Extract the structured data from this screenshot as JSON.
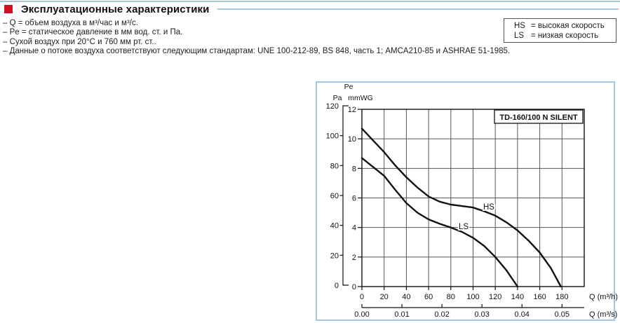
{
  "page": {
    "header": {
      "title": "Эксплуатационные характеристики"
    },
    "notes": [
      "– Q = объем воздуха в м³/час и м³/с.",
      "– Pe = статическое давление в мм вод. ст. и Па.",
      "– Сухой воздух при 20°C и 760 мм рт. ст..",
      "– Данные о потоке воздуха соответствуют следующим стандартам: UNE 100-212-89, BS 848, часть 1; AMCA210-85 и ASHRAE 51-1985."
    ],
    "legend_box": {
      "lines": [
        {
          "code": "HS",
          "desc": "= высокая скорость"
        },
        {
          "code": "LS",
          "desc": "= низкая скорость"
        }
      ]
    }
  },
  "colors": {
    "accent_red": "#d21020",
    "panel_blue": "#a7c6db",
    "ink": "#111111",
    "grid_gray": "#555555"
  },
  "chart_data": {
    "type": "line",
    "title": "TD-160/100 N SILENT",
    "pressure_symbol": "Pe",
    "y_units": {
      "left": "Pa",
      "right": "mmWG"
    },
    "x_axis_primary": {
      "label": "Q (m³/h)",
      "ticks": [
        0,
        20,
        40,
        60,
        80,
        100,
        120,
        140,
        160,
        180
      ],
      "max": 200
    },
    "x_axis_secondary": {
      "label": "Q (m³/s)",
      "ticks": [
        "0.00",
        "0.01",
        "0.02",
        "0.03",
        "0.04",
        "0.05"
      ],
      "m3h_per_unit": 3600
    },
    "y_axis_pa": {
      "ticks": [
        0,
        20,
        40,
        60,
        80,
        100,
        120
      ],
      "max": 120
    },
    "y_axis_mmwg": {
      "ticks": [
        0,
        2,
        4,
        6,
        8,
        10,
        12
      ],
      "max": 12
    },
    "grid": true,
    "legend_position": "on-curve",
    "series": [
      {
        "name": "HS",
        "points": [
          [
            0,
            10.7
          ],
          [
            10,
            9.9
          ],
          [
            20,
            9.1
          ],
          [
            30,
            8.2
          ],
          [
            40,
            7.4
          ],
          [
            50,
            6.7
          ],
          [
            60,
            6.1
          ],
          [
            70,
            5.75
          ],
          [
            80,
            5.55
          ],
          [
            90,
            5.45
          ],
          [
            100,
            5.35
          ],
          [
            110,
            5.1
          ],
          [
            120,
            4.8
          ],
          [
            130,
            4.35
          ],
          [
            140,
            3.8
          ],
          [
            150,
            3.1
          ],
          [
            160,
            2.3
          ],
          [
            170,
            1.25
          ],
          [
            179,
            0
          ]
        ]
      },
      {
        "name": "LS",
        "points": [
          [
            0,
            8.7
          ],
          [
            10,
            8.1
          ],
          [
            20,
            7.5
          ],
          [
            30,
            6.55
          ],
          [
            40,
            5.65
          ],
          [
            50,
            5.0
          ],
          [
            60,
            4.55
          ],
          [
            70,
            4.25
          ],
          [
            80,
            4.0
          ],
          [
            90,
            3.7
          ],
          [
            100,
            3.3
          ],
          [
            110,
            2.75
          ],
          [
            120,
            2.0
          ],
          [
            130,
            1.1
          ],
          [
            140,
            0
          ]
        ]
      }
    ]
  }
}
